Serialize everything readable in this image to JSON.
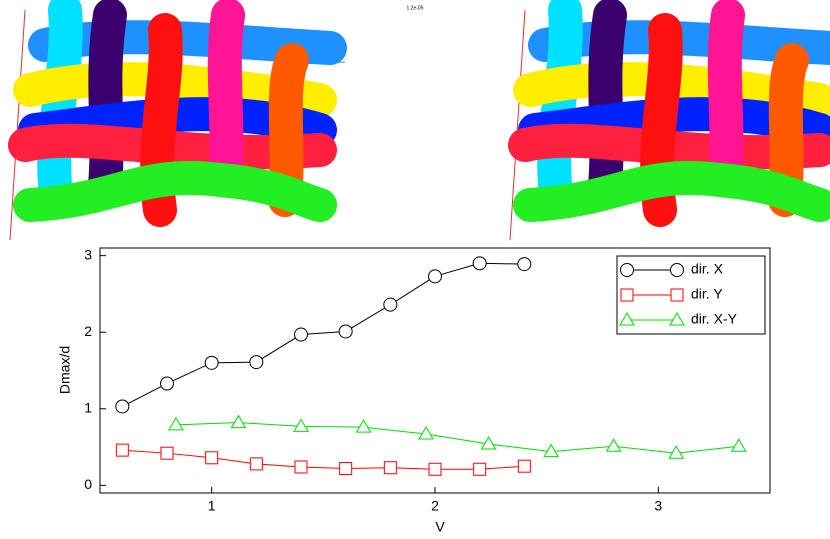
{
  "figure_label": "1.2e-05",
  "chart_data": {
    "type": "line",
    "xlabel": "V",
    "ylabel": "Dmax/d",
    "xlim": [
      0.5,
      3.5
    ],
    "ylim": [
      -0.1,
      3.1
    ],
    "xticks": [
      1,
      2,
      3
    ],
    "yticks": [
      0,
      1,
      2,
      3
    ],
    "legend": "upper right",
    "series": [
      {
        "name": "dir. X",
        "color": "#000000",
        "marker": "circle",
        "x": [
          0.6,
          0.8,
          1.0,
          1.2,
          1.4,
          1.6,
          1.8,
          2.0,
          2.2,
          2.4
        ],
        "values": [
          1.03,
          1.33,
          1.6,
          1.61,
          1.97,
          2.01,
          2.36,
          2.73,
          2.9,
          2.89
        ]
      },
      {
        "name": "dir. Y",
        "color": "#ff0000",
        "marker": "square",
        "x": [
          0.6,
          0.8,
          1.0,
          1.2,
          1.4,
          1.6,
          1.8,
          2.0,
          2.2,
          2.4
        ],
        "values": [
          0.46,
          0.42,
          0.36,
          0.28,
          0.24,
          0.22,
          0.23,
          0.21,
          0.21,
          0.25
        ]
      },
      {
        "name": "dir. X-Y",
        "color": "#00dd00",
        "marker": "triangle",
        "x": [
          0.84,
          1.12,
          1.4,
          1.68,
          1.96,
          2.24,
          2.52,
          2.8,
          3.08,
          3.36
        ],
        "values": [
          0.79,
          0.82,
          0.77,
          0.76,
          0.67,
          0.54,
          0.44,
          0.51,
          0.42,
          0.51
        ]
      }
    ]
  }
}
